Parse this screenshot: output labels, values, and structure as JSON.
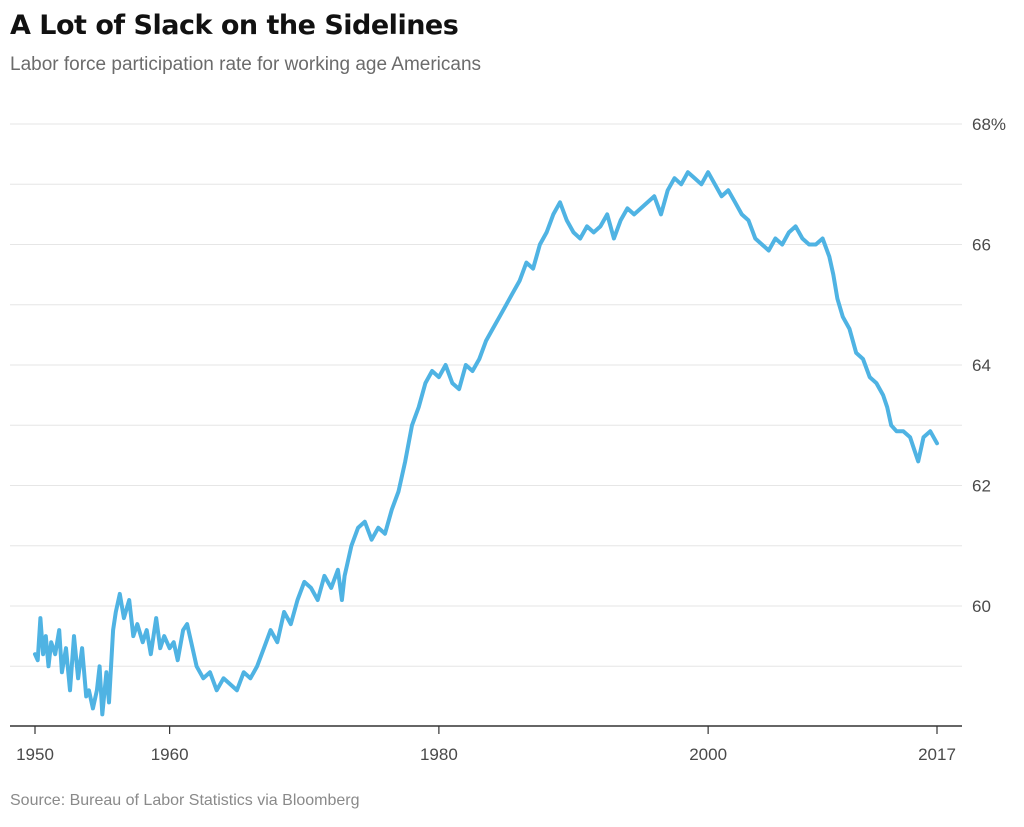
{
  "title": "A Lot of Slack on the Sidelines",
  "subtitle": "Labor force participation rate for working age Americans",
  "source": "Source: Bureau of Labor Statistics via Bloomberg",
  "chart_data": {
    "type": "line",
    "title": "A Lot of Slack on the Sidelines",
    "subtitle": "Labor force participation rate for working age Americans",
    "xlabel": "",
    "ylabel": "",
    "xlim": [
      1950,
      2017
    ],
    "ylim": [
      58,
      68
    ],
    "x_ticks": [
      {
        "value": 1950,
        "label": "1950"
      },
      {
        "value": 1960,
        "label": "1960"
      },
      {
        "value": 1980,
        "label": "1980"
      },
      {
        "value": 2000,
        "label": "2000"
      },
      {
        "value": 2017,
        "label": "2017"
      }
    ],
    "y_ticks": [
      {
        "value": 68,
        "label": "68%"
      },
      {
        "value": 66,
        "label": "66"
      },
      {
        "value": 64,
        "label": "64"
      },
      {
        "value": 62,
        "label": "62"
      },
      {
        "value": 60,
        "label": "60"
      }
    ],
    "y_gridlines": [
      59,
      60,
      61,
      62,
      63,
      64,
      65,
      66,
      67,
      68
    ],
    "grid": true,
    "line_color": "#4fb3e3",
    "series": [
      {
        "values_x": [
          1950.0,
          1950.2,
          1950.4,
          1950.6,
          1950.8,
          1951.0,
          1951.2,
          1951.5,
          1951.8,
          1952.0,
          1952.3,
          1952.6,
          1952.9,
          1953.2,
          1953.5,
          1953.8,
          1954.0,
          1954.3,
          1954.6,
          1954.8,
          1955.0,
          1955.3,
          1955.5,
          1955.8,
          1956.0,
          1956.3,
          1956.6,
          1957.0,
          1957.3,
          1957.6,
          1958.0,
          1958.3,
          1958.6,
          1959.0,
          1959.3,
          1959.6,
          1960.0,
          1960.3,
          1960.6,
          1961.0,
          1961.3,
          1961.6,
          1962.0,
          1962.5,
          1963.0,
          1963.5,
          1964.0,
          1964.5,
          1965.0,
          1965.5,
          1966.0,
          1966.5,
          1967.0,
          1967.5,
          1968.0,
          1968.5,
          1969.0,
          1969.5,
          1970.0,
          1970.5,
          1971.0,
          1971.5,
          1972.0,
          1972.5,
          1972.8,
          1973.0,
          1973.5,
          1974.0,
          1974.5,
          1975.0,
          1975.5,
          1976.0,
          1976.5,
          1977.0,
          1977.5,
          1978.0,
          1978.5,
          1979.0,
          1979.5,
          1980.0,
          1980.5,
          1981.0,
          1981.5,
          1982.0,
          1982.5,
          1983.0,
          1983.5,
          1984.0,
          1984.5,
          1985.0,
          1985.5,
          1986.0,
          1986.5,
          1987.0,
          1987.5,
          1988.0,
          1988.5,
          1989.0,
          1989.5,
          1990.0,
          1990.5,
          1991.0,
          1991.5,
          1992.0,
          1992.5,
          1993.0,
          1993.5,
          1994.0,
          1994.5,
          1995.0,
          1995.5,
          1996.0,
          1996.5,
          1997.0,
          1997.5,
          1998.0,
          1998.5,
          1999.0,
          1999.5,
          2000.0,
          2000.5,
          2001.0,
          2001.5,
          2002.0,
          2002.5,
          2003.0,
          2003.5,
          2004.0,
          2004.5,
          2005.0,
          2005.5,
          2006.0,
          2006.5,
          2007.0,
          2007.5,
          2008.0,
          2008.5,
          2009.0,
          2009.3,
          2009.6,
          2010.0,
          2010.5,
          2011.0,
          2011.5,
          2012.0,
          2012.5,
          2013.0,
          2013.3,
          2013.6,
          2014.0,
          2014.5,
          2015.0,
          2015.3,
          2015.6,
          2016.0,
          2016.5,
          2017.0
        ],
        "values_y": [
          59.2,
          59.1,
          59.8,
          59.2,
          59.5,
          59.0,
          59.4,
          59.2,
          59.6,
          58.9,
          59.3,
          58.6,
          59.5,
          58.8,
          59.3,
          58.5,
          58.6,
          58.3,
          58.6,
          59.0,
          58.2,
          58.9,
          58.4,
          59.6,
          59.9,
          60.2,
          59.8,
          60.1,
          59.5,
          59.7,
          59.4,
          59.6,
          59.2,
          59.8,
          59.3,
          59.5,
          59.3,
          59.4,
          59.1,
          59.6,
          59.7,
          59.4,
          59.0,
          58.8,
          58.9,
          58.6,
          58.8,
          58.7,
          58.6,
          58.9,
          58.8,
          59.0,
          59.3,
          59.6,
          59.4,
          59.9,
          59.7,
          60.1,
          60.4,
          60.3,
          60.1,
          60.5,
          60.3,
          60.6,
          60.1,
          60.5,
          61.0,
          61.3,
          61.4,
          61.1,
          61.3,
          61.2,
          61.6,
          61.9,
          62.4,
          63.0,
          63.3,
          63.7,
          63.9,
          63.8,
          64.0,
          63.7,
          63.6,
          64.0,
          63.9,
          64.1,
          64.4,
          64.6,
          64.8,
          65.0,
          65.2,
          65.4,
          65.7,
          65.6,
          66.0,
          66.2,
          66.5,
          66.7,
          66.4,
          66.2,
          66.1,
          66.3,
          66.2,
          66.3,
          66.5,
          66.1,
          66.4,
          66.6,
          66.5,
          66.6,
          66.7,
          66.8,
          66.5,
          66.9,
          67.1,
          67.0,
          67.2,
          67.1,
          67.0,
          67.2,
          67.0,
          66.8,
          66.9,
          66.7,
          66.5,
          66.4,
          66.1,
          66.0,
          65.9,
          66.1,
          66.0,
          66.2,
          66.3,
          66.1,
          66.0,
          66.0,
          66.1,
          65.8,
          65.5,
          65.1,
          64.8,
          64.6,
          64.2,
          64.1,
          63.8,
          63.7,
          63.5,
          63.3,
          63.0,
          62.9,
          62.9,
          62.8,
          62.6,
          62.4,
          62.8,
          62.9,
          62.7
        ]
      }
    ]
  }
}
